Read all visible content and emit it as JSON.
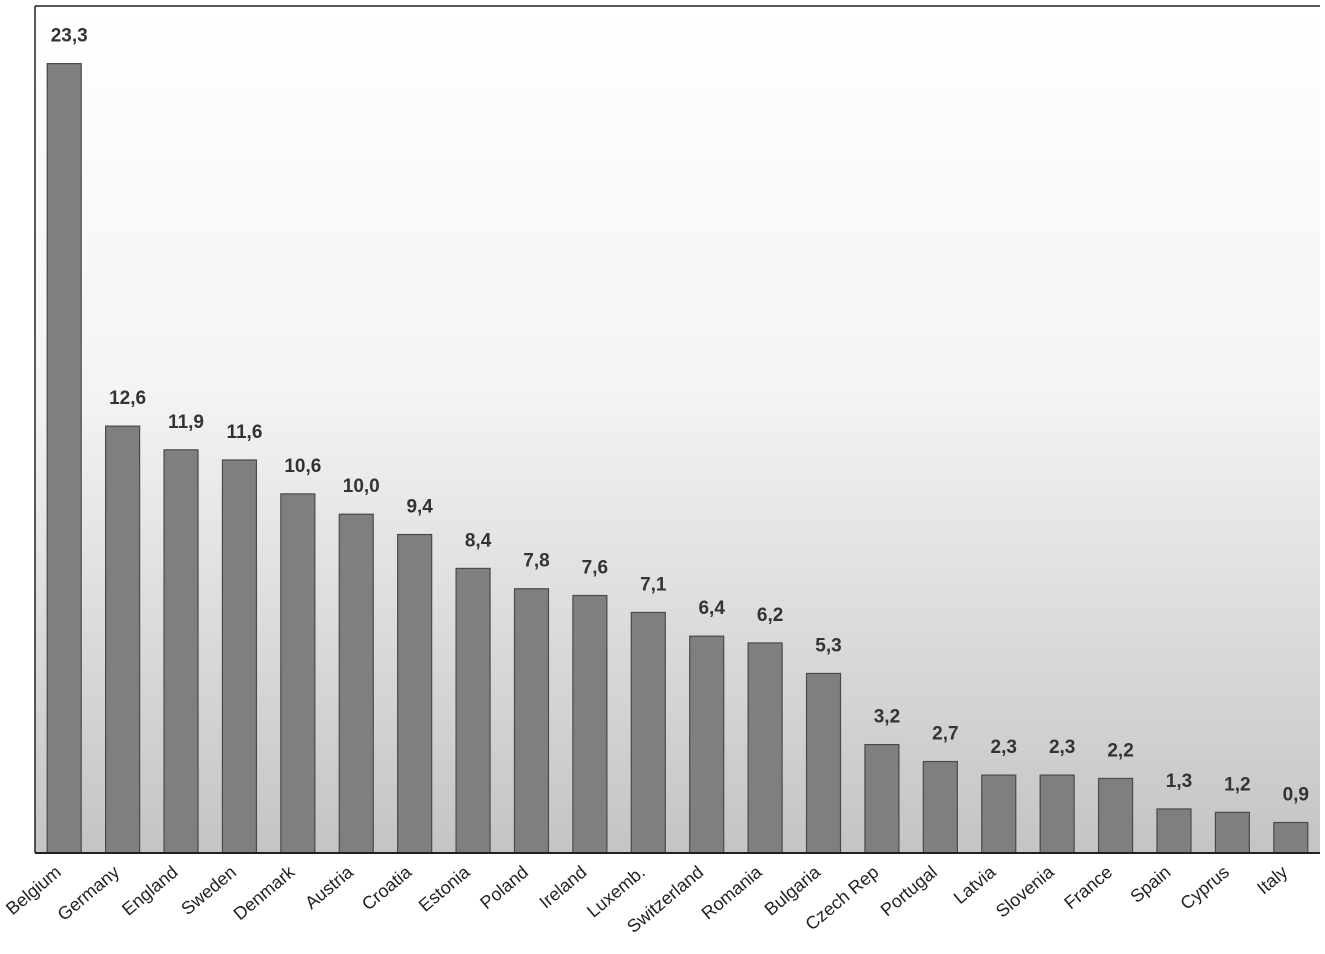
{
  "chart_data": {
    "type": "bar",
    "categories": [
      "Belgium",
      "Germany",
      "England",
      "Sweden",
      "Denmark",
      "Austria",
      "Croatia",
      "Estonia",
      "Poland",
      "Ireland",
      "Luxemb.",
      "Switzerland",
      "Romania",
      "Bulgaria",
      "Czech Rep",
      "Portugal",
      "Latvia",
      "Slovenia",
      "France",
      "Spain",
      "Cyprus",
      "Italy"
    ],
    "values": [
      23.3,
      12.6,
      11.9,
      11.6,
      10.6,
      10.0,
      9.4,
      8.4,
      7.8,
      7.6,
      7.1,
      6.4,
      6.2,
      5.3,
      3.2,
      2.7,
      2.3,
      2.3,
      2.2,
      1.3,
      1.2,
      0.9
    ],
    "value_labels": [
      "23,3",
      "12,6",
      "11,9",
      "11,6",
      "10,6",
      "10,0",
      "9,4",
      "8,4",
      "7,8",
      "7,6",
      "7,1",
      "6,4",
      "6,2",
      "5,3",
      "3,2",
      "2,7",
      "2,3",
      "2,3",
      "2,2",
      "1,3",
      "1,2",
      "0,9"
    ],
    "color": "#7f7f7f",
    "ylim": [
      0,
      25
    ]
  }
}
